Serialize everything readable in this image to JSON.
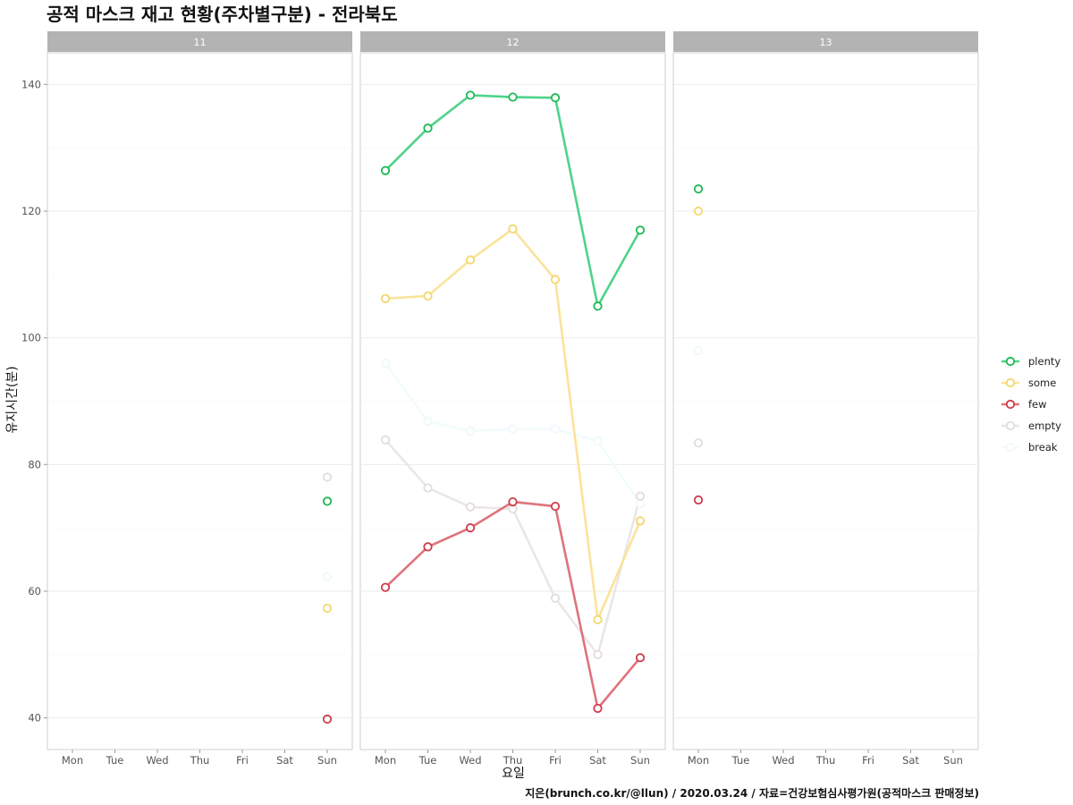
{
  "chart_data": {
    "type": "line",
    "title": "공적 마스크 재고 현황(주차별구분) - 전라북도",
    "caption": "지은(brunch.co.kr/@llun) / 2020.03.24 / 자료=건강보험심사평가원(공적마스크 판매정보)",
    "xlabel": "요일",
    "ylabel": "유지시간(분)",
    "categories": [
      "Mon",
      "Tue",
      "Wed",
      "Thu",
      "Fri",
      "Sat",
      "Sun"
    ],
    "ylim": [
      35,
      145
    ],
    "yticks": [
      40,
      60,
      80,
      100,
      120,
      140
    ],
    "grid": true,
    "legend_position": "right",
    "series_meta": [
      {
        "name": "plenty",
        "color": "#1db954",
        "line_color": "#4fd38a"
      },
      {
        "name": "some",
        "color": "#f5d66b",
        "line_color": "#fbe39a"
      },
      {
        "name": "few",
        "color": "#cf3a48",
        "line_color": "#df737b"
      },
      {
        "name": "empty",
        "color": "#e3dcdc",
        "line_color": "#ebe6e6"
      },
      {
        "name": "break",
        "color": "#eef9fa",
        "line_color": "#f2fbfc"
      }
    ],
    "facets": [
      {
        "label": "11",
        "series": [
          {
            "name": "plenty",
            "values": [
              null,
              null,
              null,
              null,
              null,
              null,
              74.2
            ]
          },
          {
            "name": "some",
            "values": [
              null,
              null,
              null,
              null,
              null,
              null,
              57.3
            ]
          },
          {
            "name": "few",
            "values": [
              null,
              null,
              null,
              null,
              null,
              null,
              39.8
            ]
          },
          {
            "name": "empty",
            "values": [
              null,
              null,
              null,
              null,
              null,
              null,
              78.0
            ]
          },
          {
            "name": "break",
            "values": [
              null,
              null,
              null,
              null,
              null,
              null,
              62.3
            ]
          }
        ]
      },
      {
        "label": "12",
        "series": [
          {
            "name": "plenty",
            "values": [
              126.4,
              133.1,
              138.3,
              138.0,
              137.9,
              105.0,
              117.0
            ]
          },
          {
            "name": "some",
            "values": [
              106.2,
              106.6,
              112.3,
              117.2,
              109.2,
              55.5,
              71.1
            ]
          },
          {
            "name": "few",
            "values": [
              60.6,
              67.0,
              70.0,
              74.1,
              73.4,
              41.5,
              49.5
            ]
          },
          {
            "name": "empty",
            "values": [
              83.9,
              76.3,
              73.3,
              73.0,
              58.9,
              50.0,
              75.0
            ]
          },
          {
            "name": "break",
            "values": [
              96.0,
              86.8,
              85.3,
              85.6,
              85.6,
              83.7,
              73.8
            ]
          }
        ]
      },
      {
        "label": "13",
        "series": [
          {
            "name": "plenty",
            "values": [
              123.5,
              null,
              null,
              null,
              null,
              null,
              null
            ]
          },
          {
            "name": "some",
            "values": [
              120.0,
              null,
              null,
              null,
              null,
              null,
              null
            ]
          },
          {
            "name": "few",
            "values": [
              74.4,
              null,
              null,
              null,
              null,
              null,
              null
            ]
          },
          {
            "name": "empty",
            "values": [
              83.4,
              null,
              null,
              null,
              null,
              null,
              null
            ]
          },
          {
            "name": "break",
            "values": [
              98.0,
              null,
              null,
              null,
              null,
              null,
              null
            ]
          }
        ]
      }
    ]
  }
}
